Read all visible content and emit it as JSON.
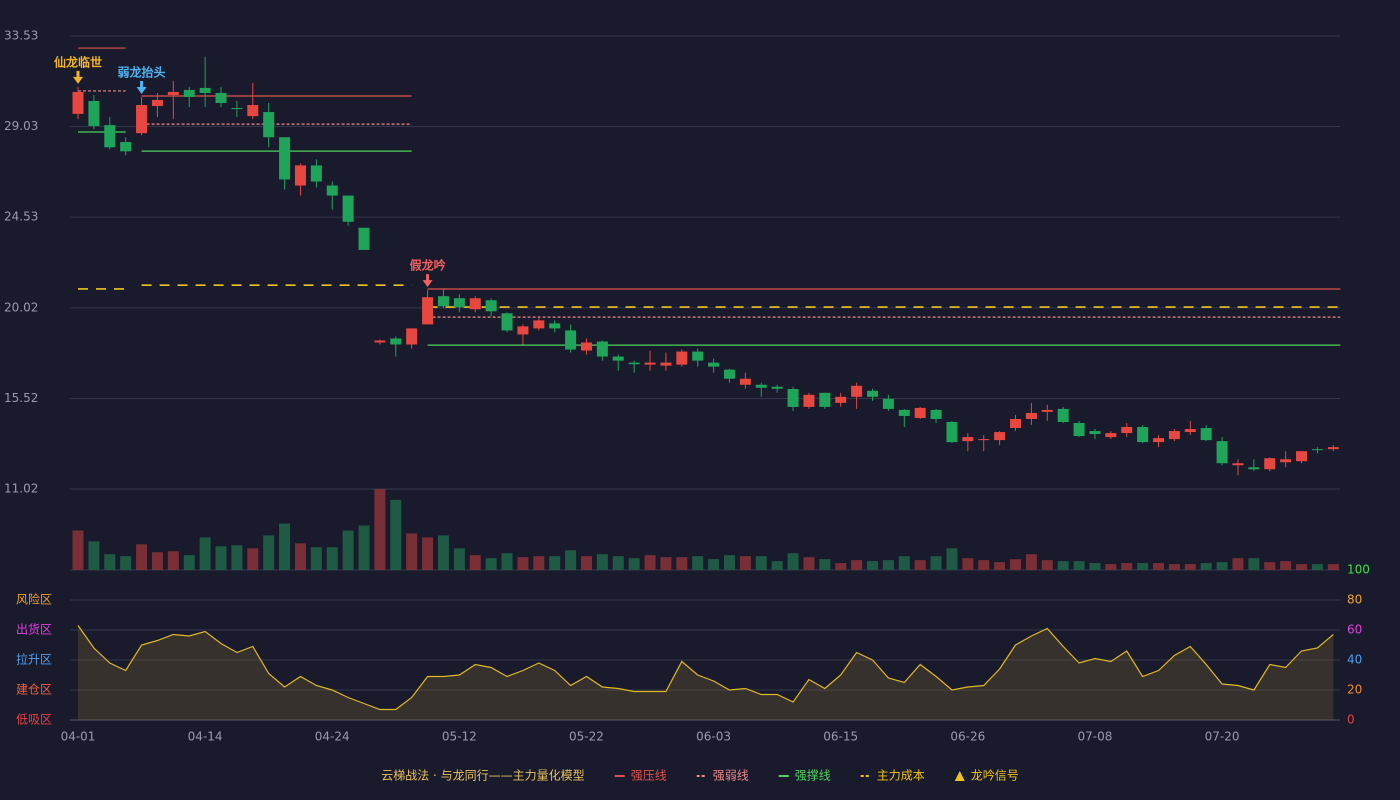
{
  "chart_data": {
    "type": "candlestick",
    "categories": [
      "04-01",
      null,
      null,
      null,
      null,
      null,
      null,
      null,
      "04-14",
      null,
      null,
      null,
      null,
      null,
      null,
      null,
      "04-24",
      null,
      null,
      null,
      null,
      null,
      null,
      null,
      "05-12",
      null,
      null,
      null,
      null,
      null,
      null,
      null,
      "05-22",
      null,
      null,
      null,
      null,
      null,
      null,
      null,
      "06-03",
      null,
      null,
      null,
      null,
      null,
      null,
      null,
      "06-15",
      null,
      null,
      null,
      null,
      null,
      null,
      null,
      "06-26",
      null,
      null,
      null,
      null,
      null,
      null,
      null,
      "07-08",
      null,
      null,
      null,
      null,
      null,
      null,
      null,
      "07-20",
      null,
      null,
      null,
      null,
      null,
      null,
      null
    ],
    "open": [
      29.66,
      30.3,
      29.1,
      28.26,
      28.7,
      30.05,
      30.6,
      30.85,
      30.95,
      30.7,
      29.95,
      29.55,
      29.75,
      28.5,
      26.1,
      27.1,
      26.1,
      25.6,
      24.0,
      18.3,
      18.5,
      18.2,
      19.2,
      20.6,
      20.5,
      19.95,
      20.4,
      19.75,
      18.7,
      19.0,
      19.25,
      18.9,
      17.9,
      18.35,
      17.6,
      17.3,
      17.2,
      17.15,
      17.2,
      17.85,
      17.3,
      16.95,
      16.2,
      16.2,
      16.1,
      15.99,
      15.1,
      15.8,
      15.3,
      15.6,
      15.9,
      15.5,
      14.95,
      14.55,
      14.95,
      14.35,
      13.4,
      13.45,
      13.45,
      14.05,
      14.5,
      14.85,
      15.0,
      14.3,
      13.9,
      13.6,
      13.8,
      14.1,
      13.35,
      13.5,
      13.85,
      14.05,
      13.4,
      12.2,
      12.1,
      12.0,
      12.35,
      12.4,
      13.0,
      13.0
    ],
    "high": [
      31.0,
      30.6,
      29.5,
      28.5,
      30.5,
      30.7,
      31.3,
      31.0,
      32.5,
      31.0,
      30.3,
      31.2,
      30.2,
      28.5,
      27.2,
      27.4,
      26.3,
      25.6,
      24.0,
      18.45,
      18.6,
      19.0,
      20.9,
      21.0,
      20.7,
      20.6,
      20.5,
      19.8,
      19.2,
      19.5,
      19.4,
      19.2,
      18.5,
      18.4,
      17.7,
      17.4,
      17.9,
      17.8,
      17.95,
      18.0,
      17.5,
      17.0,
      16.8,
      16.3,
      16.2,
      16.1,
      15.8,
      15.8,
      15.8,
      16.3,
      16.0,
      15.7,
      15.0,
      15.1,
      15.0,
      14.4,
      13.8,
      13.7,
      13.9,
      14.7,
      15.3,
      15.2,
      15.1,
      14.4,
      14.0,
      13.9,
      14.3,
      14.2,
      13.7,
      14.0,
      14.4,
      14.2,
      13.6,
      12.5,
      12.5,
      12.6,
      12.9,
      12.9,
      13.1,
      13.2
    ],
    "low": [
      29.4,
      28.9,
      27.9,
      27.6,
      28.6,
      29.5,
      29.4,
      30.0,
      30.0,
      30.0,
      29.5,
      29.4,
      28.0,
      25.9,
      25.6,
      26.0,
      24.9,
      24.1,
      22.9,
      18.2,
      17.6,
      18.0,
      19.2,
      20.0,
      19.8,
      19.8,
      19.6,
      18.8,
      18.2,
      18.9,
      18.8,
      17.8,
      17.7,
      17.4,
      16.9,
      16.8,
      16.9,
      16.9,
      17.1,
      17.1,
      16.8,
      16.3,
      16.0,
      15.6,
      15.8,
      14.9,
      15.0,
      15.0,
      15.1,
      15.0,
      15.4,
      14.9,
      14.1,
      14.5,
      14.3,
      13.3,
      12.9,
      12.9,
      13.2,
      13.9,
      14.2,
      14.4,
      14.3,
      13.6,
      13.5,
      13.5,
      13.6,
      13.3,
      13.1,
      13.4,
      13.7,
      13.4,
      12.2,
      11.7,
      11.9,
      11.9,
      12.1,
      12.3,
      12.8,
      12.9
    ],
    "close": [
      30.75,
      29.06,
      28.0,
      27.8,
      30.1,
      30.35,
      30.75,
      30.5,
      30.7,
      30.2,
      29.9,
      30.1,
      28.5,
      26.4,
      27.1,
      26.3,
      25.6,
      24.3,
      22.9,
      18.4,
      18.2,
      19.0,
      20.55,
      20.1,
      20.05,
      20.5,
      19.85,
      18.9,
      19.1,
      19.4,
      19.0,
      17.95,
      18.3,
      17.6,
      17.4,
      17.22,
      17.3,
      17.3,
      17.85,
      17.4,
      17.1,
      16.5,
      16.5,
      16.05,
      16.0,
      15.1,
      15.7,
      15.1,
      15.6,
      16.15,
      15.6,
      15.0,
      14.65,
      15.05,
      14.5,
      13.35,
      13.6,
      13.5,
      13.85,
      14.5,
      14.8,
      14.95,
      14.35,
      13.65,
      13.75,
      13.8,
      14.1,
      13.35,
      13.55,
      13.9,
      14.0,
      13.45,
      12.3,
      12.3,
      12.0,
      12.55,
      12.5,
      12.9,
      12.95,
      13.1
    ],
    "volume": [
      40,
      29,
      16,
      14,
      26,
      18,
      19,
      15,
      33,
      24,
      25,
      22,
      35,
      47,
      27,
      23,
      23,
      40,
      45,
      82,
      71,
      37,
      33,
      35,
      22,
      15,
      12,
      17,
      13,
      14,
      14,
      20,
      14,
      16,
      14,
      12,
      15,
      13,
      13,
      14,
      11,
      15,
      14,
      14,
      9,
      17,
      13,
      11,
      7,
      10,
      9,
      10,
      14,
      10,
      14,
      22,
      12,
      10,
      8,
      11,
      16,
      10,
      9,
      9,
      7,
      6,
      7,
      7,
      7,
      6,
      6,
      7,
      8,
      12,
      12,
      8,
      9,
      6,
      6,
      6
    ],
    "up_color": "#e8473f",
    "down_color": "#1fa55a",
    "volume_up_color": "#7a2e36",
    "volume_down_color": "#1f5a45",
    "ylim": [
      11.02,
      33.53
    ],
    "yticks": [
      33.53,
      29.03,
      24.53,
      20.02,
      15.52,
      11.02
    ],
    "grid": true,
    "levels": [
      {
        "name": "强压线",
        "color": "#e0504a",
        "style": "solid",
        "segments": [
          {
            "from": 0,
            "to": 3,
            "value": 32.93
          },
          {
            "from": 4,
            "to": 21,
            "value": 30.55
          },
          {
            "from": 22,
            "to": 79,
            "value": 20.96
          }
        ]
      },
      {
        "name": "强弱线",
        "color": "#f08888",
        "style": "dashed",
        "segments": [
          {
            "from": 0,
            "to": 3,
            "value": 30.8
          },
          {
            "from": 4,
            "to": 21,
            "value": 29.15
          },
          {
            "from": 22,
            "to": 79,
            "value": 19.56
          }
        ]
      },
      {
        "name": "强撑线",
        "color": "#4cd45a",
        "style": "solid",
        "segments": [
          {
            "from": 0,
            "to": 3,
            "value": 28.76
          },
          {
            "from": 4,
            "to": 21,
            "value": 27.81
          },
          {
            "from": 22,
            "to": 79,
            "value": 18.17
          }
        ]
      },
      {
        "name": "主力成本",
        "color": "#f0c419",
        "style": "longdash",
        "segments": [
          {
            "from": 0,
            "to": 3,
            "value": 20.96
          },
          {
            "from": 4,
            "to": 21,
            "value": 21.15
          },
          {
            "from": 22,
            "to": 79,
            "value": 20.06
          }
        ]
      }
    ],
    "signals": [
      {
        "label": "仙龙临世",
        "index": 0,
        "color": "#f0b429"
      },
      {
        "label": "弱龙抬头",
        "index": 4,
        "color": "#4fb3f0"
      },
      {
        "label": "假龙吟",
        "index": 22,
        "color": "#f06060"
      }
    ],
    "indicator": {
      "values": [
        63,
        48,
        38,
        33,
        50,
        53,
        57,
        56,
        59,
        51,
        45,
        49,
        31,
        22,
        29,
        23,
        20,
        15,
        11,
        7,
        7,
        15,
        29,
        29,
        30,
        37,
        35,
        29,
        33,
        38,
        33,
        23,
        29,
        22,
        21,
        19,
        19,
        19,
        39,
        30,
        26,
        20,
        21,
        17,
        17,
        12,
        27,
        21,
        30,
        45,
        40,
        28,
        25,
        37,
        29,
        20,
        22,
        23,
        34,
        50,
        56,
        61,
        49,
        38,
        41,
        39,
        46,
        29,
        33,
        43,
        49,
        37,
        24,
        23,
        20,
        37,
        35,
        46,
        48,
        57
      ],
      "color": "#e0b820",
      "ylim": [
        0,
        100
      ],
      "yticks": [
        0,
        20,
        40,
        60,
        80,
        100
      ],
      "ytick_colors": [
        "#e84040",
        "#f08a30",
        "#4f9ef0",
        "#e040e0",
        "#f0a030",
        "#40e040"
      ],
      "zones": [
        {
          "label": "风险区",
          "value": 80,
          "color": "#f0a030"
        },
        {
          "label": "出货区",
          "value": 60,
          "color": "#e040e0"
        },
        {
          "label": "拉升区",
          "value": 40,
          "color": "#4f9ef0"
        },
        {
          "label": "建仓区",
          "value": 20,
          "color": "#f06040"
        },
        {
          "label": "低吸区",
          "value": 0,
          "color": "#e84040"
        }
      ]
    },
    "legend_title": "云梯战法 · 与龙同行——主力量化模型",
    "signal_legend": "龙吟信号"
  }
}
